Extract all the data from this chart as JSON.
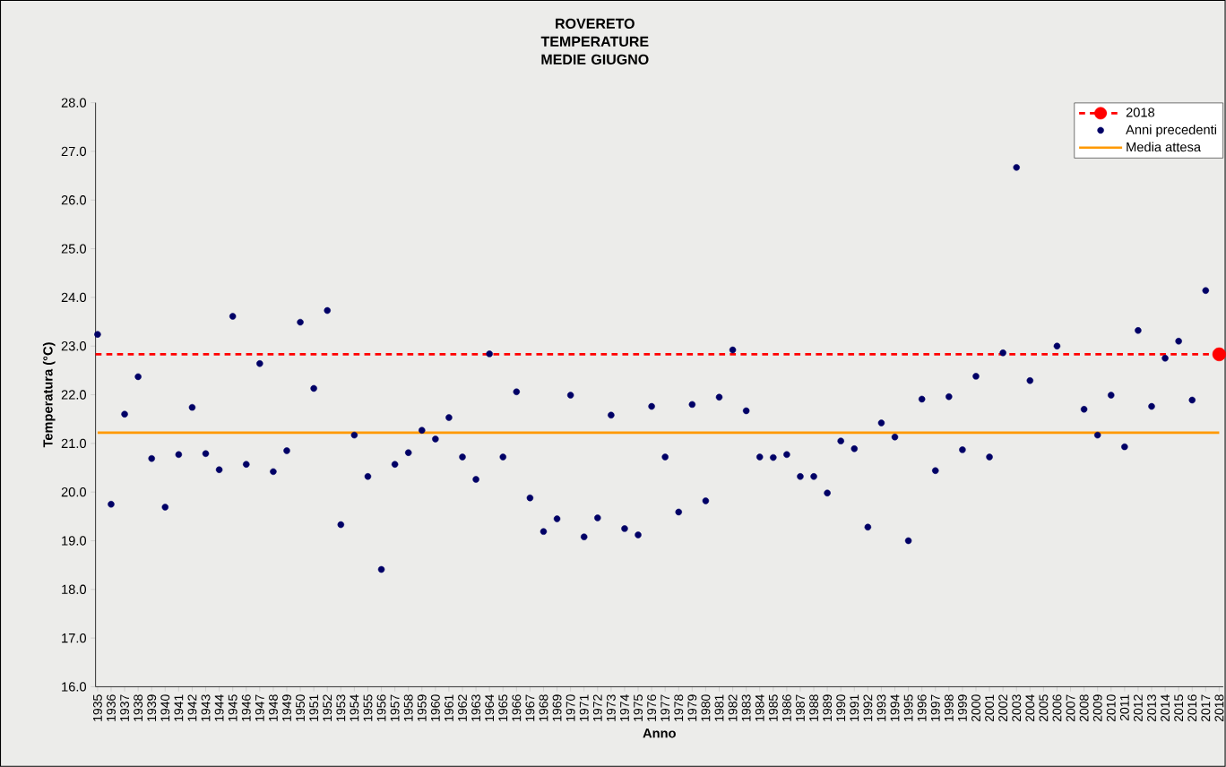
{
  "chart_data": {
    "type": "scatter",
    "title": "ROVERETO",
    "subtitle": "TEMPERATURE MEDIE GIUGNO",
    "xlabel": "Anno",
    "ylabel": "Temperatura (°C)",
    "categories": [
      "1935",
      "1936",
      "1937",
      "1938",
      "1939",
      "1940",
      "1941",
      "1942",
      "1943",
      "1944",
      "1945",
      "1946",
      "1947",
      "1948",
      "1949",
      "1950",
      "1951",
      "1952",
      "1953",
      "1954",
      "1955",
      "1956",
      "1957",
      "1958",
      "1959",
      "1960",
      "1961",
      "1962",
      "1963",
      "1964",
      "1965",
      "1966",
      "1967",
      "1968",
      "1969",
      "1970",
      "1971",
      "1972",
      "1973",
      "1974",
      "1975",
      "1976",
      "1977",
      "1978",
      "1979",
      "1980",
      "1981",
      "1982",
      "1983",
      "1984",
      "1985",
      "1986",
      "1987",
      "1988",
      "1989",
      "1990",
      "1991",
      "1992",
      "1993",
      "1994",
      "1995",
      "1996",
      "1997",
      "1998",
      "1999",
      "2000",
      "2001",
      "2002",
      "2003",
      "2004",
      "2005",
      "2006",
      "2007",
      "2008",
      "2009",
      "2010",
      "2011",
      "2012",
      "2013",
      "2014",
      "2015",
      "2016",
      "2017",
      "2018"
    ],
    "series": [
      {
        "name": "2018",
        "marker": "circle",
        "color": "#ff0000",
        "line_style": "dashed",
        "values": [
          null,
          null,
          null,
          null,
          null,
          null,
          null,
          null,
          null,
          null,
          null,
          null,
          null,
          null,
          null,
          null,
          null,
          null,
          null,
          null,
          null,
          null,
          null,
          null,
          null,
          null,
          null,
          null,
          null,
          null,
          null,
          null,
          null,
          null,
          null,
          null,
          null,
          null,
          null,
          null,
          null,
          null,
          null,
          null,
          null,
          null,
          null,
          null,
          null,
          null,
          null,
          null,
          null,
          null,
          null,
          null,
          null,
          null,
          null,
          null,
          null,
          null,
          null,
          null,
          null,
          null,
          null,
          null,
          null,
          null,
          null,
          null,
          null,
          null,
          null,
          null,
          null,
          null,
          null,
          null,
          null,
          null,
          null,
          22.83
        ]
      },
      {
        "name": "Anni precedenti",
        "marker": "circle",
        "color": "#000066",
        "values": [
          23.24,
          19.75,
          21.6,
          22.37,
          20.69,
          19.69,
          20.77,
          21.74,
          20.79,
          20.46,
          23.61,
          20.57,
          22.64,
          20.42,
          20.85,
          23.49,
          22.13,
          23.73,
          19.33,
          21.17,
          20.32,
          18.41,
          20.57,
          20.81,
          21.27,
          21.09,
          21.53,
          20.72,
          20.26,
          22.84,
          20.72,
          22.06,
          19.88,
          19.19,
          19.45,
          21.99,
          19.08,
          19.47,
          21.58,
          19.25,
          19.12,
          21.76,
          20.72,
          19.59,
          21.8,
          19.82,
          21.95,
          22.92,
          21.67,
          20.72,
          20.71,
          20.77,
          20.32,
          20.32,
          19.98,
          21.05,
          20.89,
          19.28,
          21.42,
          21.13,
          19.0,
          21.91,
          20.44,
          21.96,
          20.87,
          22.38,
          20.72,
          22.86,
          26.67,
          22.29,
          null,
          23.0,
          null,
          21.7,
          21.17,
          21.99,
          20.93,
          23.32,
          21.76,
          22.75,
          23.1,
          21.89,
          24.14,
          null
        ]
      },
      {
        "name": "Media attesa",
        "type": "line",
        "marker": "none",
        "color": "#ff9900",
        "line_style": "solid",
        "values": [
          21.22,
          21.22,
          21.22,
          21.22,
          21.22,
          21.22,
          21.22,
          21.22,
          21.22,
          21.22,
          21.22,
          21.22,
          21.22,
          21.22,
          21.22,
          21.22,
          21.22,
          21.22,
          21.22,
          21.22,
          21.22,
          21.22,
          21.22,
          21.22,
          21.22,
          21.22,
          21.22,
          21.22,
          21.22,
          21.22,
          21.22,
          21.22,
          21.22,
          21.22,
          21.22,
          21.22,
          21.22,
          21.22,
          21.22,
          21.22,
          21.22,
          21.22,
          21.22,
          21.22,
          21.22,
          21.22,
          21.22,
          21.22,
          21.22,
          21.22,
          21.22,
          21.22,
          21.22,
          21.22,
          21.22,
          21.22,
          21.22,
          21.22,
          21.22,
          21.22,
          21.22,
          21.22,
          21.22,
          21.22,
          21.22,
          21.22,
          21.22,
          21.22,
          21.22,
          21.22,
          21.22,
          21.22,
          21.22,
          21.22,
          21.22,
          21.22,
          21.22,
          21.22,
          21.22,
          21.22,
          21.22,
          21.22,
          21.22,
          21.22
        ]
      }
    ],
    "ref_lines": [
      {
        "axis": "y",
        "value": 22.83,
        "color": "#ff0000",
        "line_style": "dashed"
      }
    ],
    "ylim": [
      16,
      28
    ],
    "yticks": [
      {
        "value": 16,
        "label": "16.0"
      },
      {
        "value": 17,
        "label": "17.0"
      },
      {
        "value": 18,
        "label": "18.0"
      },
      {
        "value": 19,
        "label": "19.0"
      },
      {
        "value": 20,
        "label": "20.0"
      },
      {
        "value": 21,
        "label": "21.0"
      },
      {
        "value": 22,
        "label": "22.0"
      },
      {
        "value": 23,
        "label": "23.0"
      },
      {
        "value": 24,
        "label": "24.0"
      },
      {
        "value": 25,
        "label": "25.0"
      },
      {
        "value": 26,
        "label": "26.0"
      },
      {
        "value": 27,
        "label": "27.0"
      },
      {
        "value": 28,
        "label": "28.0"
      }
    ],
    "grid": false,
    "legend": "top right"
  }
}
